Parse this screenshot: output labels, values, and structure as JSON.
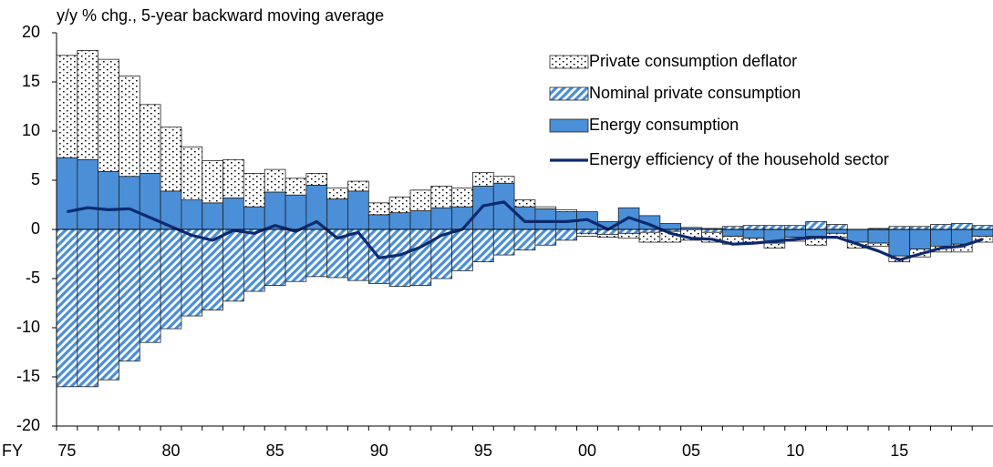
{
  "chart_data": {
    "type": "stacked-bar-line",
    "axis_title": "y/y % chg., 5-year backward moving average",
    "xlabel": "FY",
    "categories": [
      "75",
      null,
      null,
      null,
      null,
      "80",
      null,
      null,
      null,
      null,
      "85",
      null,
      null,
      null,
      null,
      "90",
      null,
      null,
      null,
      null,
      "95",
      null,
      null,
      null,
      null,
      "00",
      null,
      null,
      null,
      null,
      "05",
      null,
      null,
      null,
      null,
      "10",
      null,
      null,
      null,
      null,
      "15",
      null,
      null,
      null,
      null
    ],
    "series": [
      {
        "name": "Private consumption deflator",
        "kind": "bar",
        "pattern": "dots",
        "color": "#000000",
        "values": [
          10.4,
          11.1,
          11.4,
          10.2,
          7.0,
          6.5,
          5.4,
          4.3,
          3.9,
          3.4,
          2.3,
          1.7,
          1.2,
          1.1,
          1.0,
          1.2,
          1.6,
          2.1,
          2.2,
          1.9,
          1.4,
          0.7,
          0.7,
          0.2,
          0.2,
          -0.3,
          -0.3,
          -0.5,
          -1.0,
          -1.1,
          -1.1,
          -1.0,
          -0.8,
          -0.4,
          -0.5,
          -0.4,
          -0.9,
          -0.4,
          -0.6,
          -0.3,
          -0.6,
          -0.8,
          -0.6,
          -0.8,
          -0.6
        ]
      },
      {
        "name": "Nominal private consumption",
        "kind": "bar",
        "pattern": "hatch",
        "color": "#4a8fd8",
        "values": [
          -16.0,
          -16.0,
          -15.3,
          -13.4,
          -11.5,
          -10.1,
          -8.8,
          -8.2,
          -7.3,
          -6.3,
          -5.7,
          -5.3,
          -4.8,
          -4.9,
          -5.2,
          -5.5,
          -5.8,
          -5.7,
          -5.0,
          -4.2,
          -3.3,
          -2.6,
          -2.1,
          -1.6,
          -1.1,
          -0.4,
          -0.5,
          -0.4,
          -0.3,
          -0.2,
          0.0,
          -0.3,
          0.3,
          0.4,
          0.4,
          0.4,
          0.8,
          0.5,
          0.0,
          0.1,
          0.3,
          0.3,
          0.5,
          0.6,
          0.4
        ]
      },
      {
        "name": "Energy consumption",
        "kind": "bar",
        "pattern": "solid",
        "color": "#4a8fd8",
        "values": [
          7.3,
          7.1,
          5.9,
          5.4,
          5.7,
          3.9,
          3.0,
          2.7,
          3.2,
          2.3,
          3.8,
          3.5,
          4.5,
          3.1,
          3.9,
          1.5,
          1.7,
          1.9,
          2.2,
          2.3,
          4.4,
          4.7,
          2.3,
          2.1,
          1.8,
          1.8,
          0.8,
          2.2,
          1.4,
          0.6,
          0.2,
          0.1,
          -0.7,
          -0.9,
          -1.4,
          -0.8,
          -0.7,
          -0.4,
          -1.3,
          -1.4,
          -2.7,
          -2.0,
          -1.7,
          -1.5,
          -0.7
        ]
      },
      {
        "name": "Energy efficiency of the household sector",
        "kind": "line",
        "color": "#0d2a6e",
        "values": [
          1.8,
          2.2,
          2.0,
          2.1,
          1.2,
          0.3,
          -0.6,
          -1.1,
          -0.1,
          -0.4,
          0.4,
          -0.2,
          0.8,
          -0.9,
          -0.3,
          -2.9,
          -2.6,
          -1.8,
          -0.6,
          0.0,
          2.4,
          2.8,
          0.8,
          0.8,
          0.8,
          1.0,
          0.0,
          1.2,
          0.5,
          -0.4,
          -0.9,
          -1.0,
          -1.5,
          -1.4,
          -1.2,
          -1.0,
          -0.8,
          -0.8,
          -1.5,
          -2.2,
          -3.1,
          -2.5,
          -1.9,
          -1.7,
          -1.0
        ]
      }
    ],
    "ylim": [
      -20,
      20
    ],
    "yticks": [
      -20,
      -15,
      -10,
      -5,
      0,
      5,
      10,
      15,
      20
    ],
    "legend": "top-right"
  }
}
